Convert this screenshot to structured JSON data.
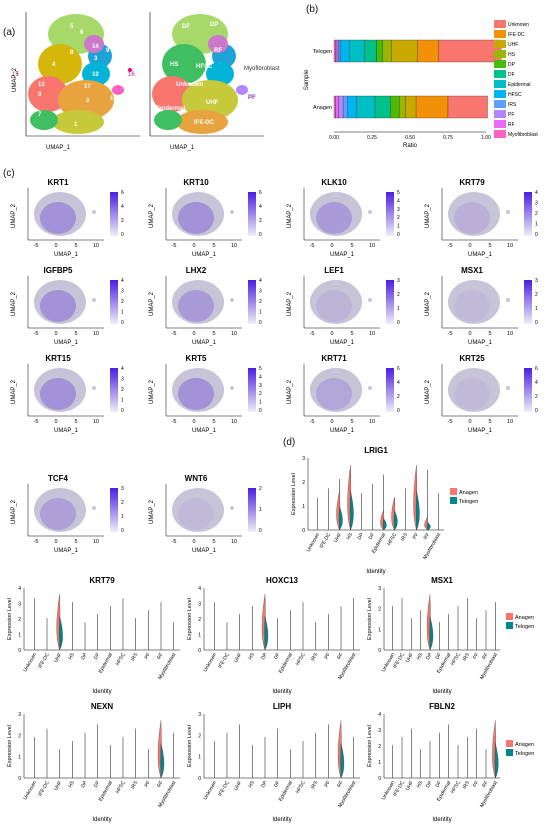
{
  "panel_labels": {
    "a": "(a)",
    "b": "(b)",
    "c": "(c)",
    "d": "(d)"
  },
  "umap_axes": {
    "x": "UMAP_1",
    "y": "UMAP_2"
  },
  "umap_clusters": {
    "numbers": [
      "0",
      "1",
      "2",
      "3",
      "4",
      "5",
      "6",
      "7",
      "8",
      "9",
      "10",
      "11",
      "12",
      "13",
      "14",
      "15",
      "16",
      "17"
    ],
    "labels": [
      "DF",
      "DP",
      "RF",
      "IRS",
      "Myofibroblast",
      "HS",
      "HFSC",
      "Unknown",
      "Epidermal",
      "UHF",
      "PF",
      "IFE-DC"
    ]
  },
  "stacked_bar": {
    "title_axis_x": "Ratio",
    "title_axis_y": "Sample",
    "samples": [
      "Telogen",
      "Anagen"
    ],
    "x_ticks": [
      "0.00",
      "0.25",
      "0.50",
      "0.75",
      "1.00"
    ],
    "legend": [
      {
        "name": "Unknown",
        "color": "#F8766D"
      },
      {
        "name": "IFE-DC",
        "color": "#F29108"
      },
      {
        "name": "UHF",
        "color": "#C7A900"
      },
      {
        "name": "HS",
        "color": "#9BB500"
      },
      {
        "name": "DP",
        "color": "#4BBA06"
      },
      {
        "name": "DF",
        "color": "#00C08B"
      },
      {
        "name": "Epidermal",
        "color": "#00BFC4"
      },
      {
        "name": "HFSC",
        "color": "#00B4F0"
      },
      {
        "name": "IRS",
        "color": "#5E9EFF"
      },
      {
        "name": "PF",
        "color": "#B385FF"
      },
      {
        "name": "RF",
        "color": "#E76BF3"
      },
      {
        "name": "Myofibroblast",
        "color": "#FF61C3"
      }
    ]
  },
  "chart_data": [
    {
      "type": "bar",
      "title": "",
      "xlabel": "Ratio",
      "ylabel": "Sample",
      "categories": [
        "Telogen",
        "Anagen"
      ],
      "xlim": [
        0,
        1
      ],
      "series": [
        {
          "name": "Myofibroblast",
          "values": [
            0.01,
            0.01
          ]
        },
        {
          "name": "RF",
          "values": [
            0.01,
            0.02
          ]
        },
        {
          "name": "PF",
          "values": [
            0.01,
            0.03
          ]
        },
        {
          "name": "IRS",
          "values": [
            0.01,
            0.03
          ]
        },
        {
          "name": "HFSC",
          "values": [
            0.06,
            0.06
          ]
        },
        {
          "name": "Epidermal",
          "values": [
            0.1,
            0.12
          ]
        },
        {
          "name": "DF",
          "values": [
            0.08,
            0.1
          ]
        },
        {
          "name": "DP",
          "values": [
            0.04,
            0.06
          ]
        },
        {
          "name": "HS",
          "values": [
            0.06,
            0.04
          ]
        },
        {
          "name": "UHF",
          "values": [
            0.17,
            0.07
          ]
        },
        {
          "name": "IFE-DC",
          "values": [
            0.14,
            0.21
          ]
        },
        {
          "name": "Unknown",
          "values": [
            0.41,
            0.26
          ]
        }
      ]
    }
  ],
  "feature_plots": {
    "xlabel": "UMAP_1",
    "ylabel": "UMAP_2",
    "x_ticks": [
      "-5",
      "0",
      "5",
      "10"
    ],
    "genes": [
      {
        "gene": "KRT1",
        "scale": [
          "6",
          "4",
          "2",
          "0"
        ]
      },
      {
        "gene": "KRT10",
        "scale": [
          "6",
          "4",
          "2",
          "0"
        ]
      },
      {
        "gene": "KLK10",
        "scale": [
          "5",
          "4",
          "3",
          "2",
          "1",
          "0"
        ]
      },
      {
        "gene": "KRT79",
        "scale": [
          "4",
          "3",
          "2",
          "1",
          "0"
        ]
      },
      {
        "gene": "IGFBP5",
        "scale": [
          "4",
          "3",
          "2",
          "1",
          "0"
        ]
      },
      {
        "gene": "LHX2",
        "scale": [
          "4",
          "3",
          "2",
          "1",
          "0"
        ]
      },
      {
        "gene": "LEF1",
        "scale": [
          "3",
          "2",
          "1",
          "0"
        ]
      },
      {
        "gene": "MSX1",
        "scale": [
          "3",
          "2",
          "1",
          "0"
        ]
      },
      {
        "gene": "KRT15",
        "scale": [
          "4",
          "3",
          "2",
          "1",
          "0"
        ]
      },
      {
        "gene": "KRT5",
        "scale": [
          "5",
          "4",
          "3",
          "2",
          "1",
          "0"
        ]
      },
      {
        "gene": "KRT71",
        "scale": [
          "6",
          "4",
          "2",
          "0"
        ]
      },
      {
        "gene": "KRT25",
        "scale": [
          "6",
          "4",
          "2",
          "0"
        ]
      },
      {
        "gene": "TCF4",
        "scale": [
          "3",
          "2",
          "1",
          "0"
        ]
      },
      {
        "gene": "WNT6",
        "scale": [
          "2",
          "1",
          "0"
        ]
      }
    ]
  },
  "violin": {
    "ylabel": "Expression Level",
    "xlabel": "Identity",
    "identities": [
      "Unknown",
      "IFE-DC",
      "UHF",
      "HS",
      "DP",
      "DF",
      "Epidermal",
      "HFSC",
      "IRS",
      "PF",
      "RF",
      "Myofibroblast"
    ],
    "legend": [
      {
        "name": "Anagen",
        "color": "#F8766D"
      },
      {
        "name": "Telogen",
        "color": "#00868B"
      }
    ],
    "plots": [
      {
        "gene": "LRIG1",
        "yticks": [
          "0",
          "1",
          "2",
          "3"
        ]
      },
      {
        "gene": "KRT79",
        "yticks": [
          "0",
          "1",
          "2",
          "3",
          "4"
        ]
      },
      {
        "gene": "HOXC13",
        "yticks": [
          "0",
          "1",
          "2",
          "3",
          "4"
        ]
      },
      {
        "gene": "MSX1",
        "yticks": [
          "0",
          "1",
          "2",
          "3"
        ]
      },
      {
        "gene": "NEXN",
        "yticks": [
          "0",
          "1",
          "2",
          "3"
        ]
      },
      {
        "gene": "LIPH",
        "yticks": [
          "0",
          "1",
          "2",
          "3"
        ]
      },
      {
        "gene": "FBLN2",
        "yticks": [
          "0",
          "1",
          "2",
          "3",
          "4"
        ]
      }
    ]
  }
}
